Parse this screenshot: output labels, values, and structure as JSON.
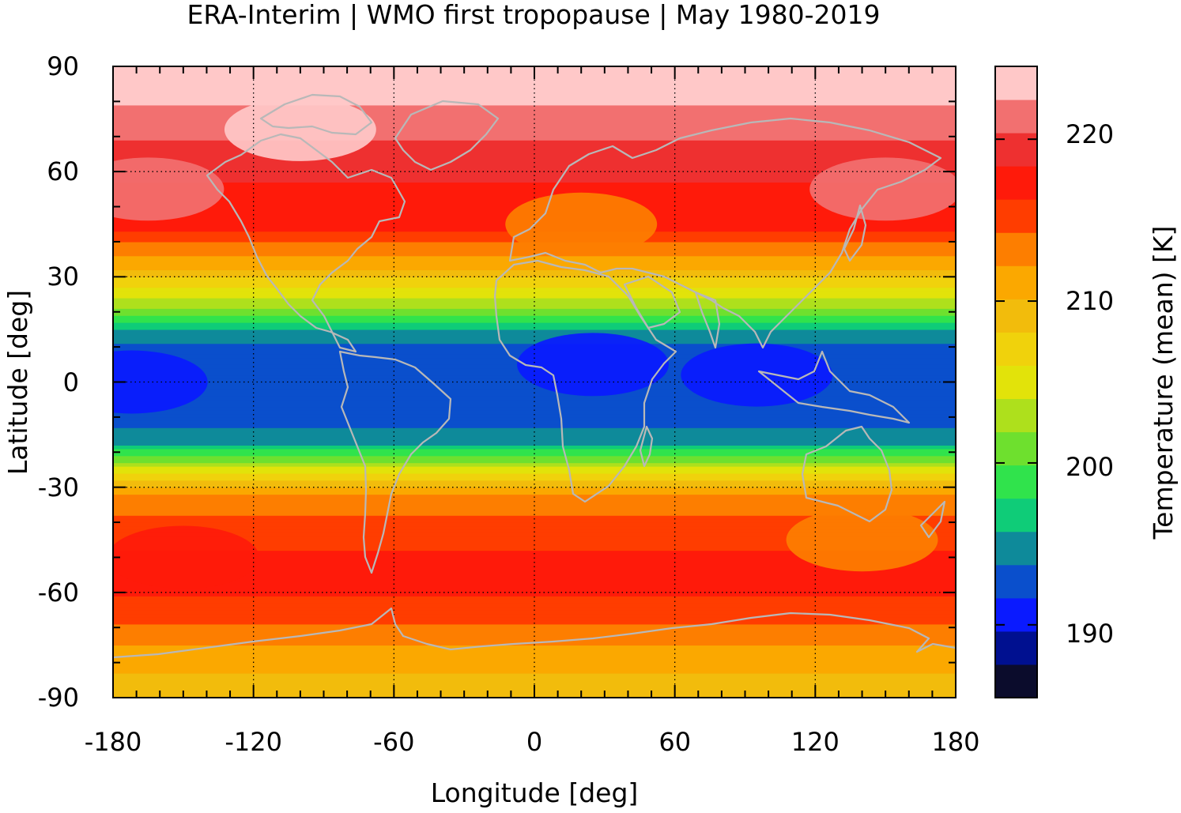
{
  "chart_data": {
    "type": "heatmap",
    "title": "ERA-Interim | WMO first tropopause | May 1980-2019",
    "xlabel": "Longitude [deg]",
    "ylabel": "Latitude [deg]",
    "xlim": [
      -180,
      180
    ],
    "ylim": [
      -90,
      90
    ],
    "x_ticks": [
      -180,
      -120,
      -60,
      0,
      60,
      120,
      180
    ],
    "x_tick_labels": [
      "-180",
      "-120",
      "-60",
      "0",
      "60",
      "120",
      "180"
    ],
    "y_ticks": [
      90,
      60,
      30,
      0,
      -30,
      -60,
      -90
    ],
    "y_tick_labels": [
      "90",
      "60",
      "30",
      "0",
      "-30",
      "-60",
      "-90"
    ],
    "grid": true,
    "coastlines_color": "#b8b8b8",
    "colorbar": {
      "label": "Temperature (mean) [K]",
      "range": [
        185.5,
        224.5
      ],
      "ticks": [
        190,
        200,
        210,
        220
      ],
      "tick_labels": [
        "190",
        "200",
        "210",
        "220"
      ],
      "colors": [
        "#0b0c2c",
        "#001090",
        "#0a1aff",
        "#0a4fcc",
        "#0e8a9a",
        "#0fcc78",
        "#30e34c",
        "#6ee02e",
        "#aee01c",
        "#e2e30a",
        "#f0d20c",
        "#f2bc0c",
        "#fba800",
        "#fd7e00",
        "#ff3d00",
        "#ff1a0a",
        "#ee3030",
        "#f27070",
        "#ffc8c8"
      ]
    },
    "zonal_profile": [
      {
        "lat": -90,
        "value": 209.5
      },
      {
        "lat": -83,
        "value": 210
      },
      {
        "lat": -76,
        "value": 212
      },
      {
        "lat": -70,
        "value": 214
      },
      {
        "lat": -64,
        "value": 216
      },
      {
        "lat": -55,
        "value": 217
      },
      {
        "lat": -45,
        "value": 216
      },
      {
        "lat": -37,
        "value": 214
      },
      {
        "lat": -32,
        "value": 212
      },
      {
        "lat": -29,
        "value": 209.5
      },
      {
        "lat": -26,
        "value": 206
      },
      {
        "lat": -22,
        "value": 201
      },
      {
        "lat": -18,
        "value": 196
      },
      {
        "lat": -12,
        "value": 193
      },
      {
        "lat": 0,
        "value": 192
      },
      {
        "lat": 10,
        "value": 193
      },
      {
        "lat": 15,
        "value": 196
      },
      {
        "lat": 19,
        "value": 200
      },
      {
        "lat": 24,
        "value": 204
      },
      {
        "lat": 28,
        "value": 207
      },
      {
        "lat": 33,
        "value": 210.5
      },
      {
        "lat": 38,
        "value": 213
      },
      {
        "lat": 42,
        "value": 216
      },
      {
        "lat": 47,
        "value": 217
      },
      {
        "lat": 55,
        "value": 218
      },
      {
        "lat": 62,
        "value": 219
      },
      {
        "lat": 68,
        "value": 220
      },
      {
        "lat": 75,
        "value": 222
      },
      {
        "lat": 83,
        "value": 223
      },
      {
        "lat": 90,
        "value": 223.5
      }
    ],
    "anomalies": [
      {
        "lon": 95,
        "lat": 2,
        "value": 190.5,
        "description": "cold tropopause over Indonesian maritime continent"
      },
      {
        "lon": 25,
        "lat": 5,
        "value": 191,
        "description": "cold tropopause over central Africa"
      },
      {
        "lon": -172,
        "lat": 0,
        "value": 191,
        "description": "cold tropopause over central Pacific"
      },
      {
        "lon": -100,
        "lat": 72,
        "value": 223,
        "description": "warm tropopause over Canadian Arctic"
      },
      {
        "lon": -165,
        "lat": 55,
        "value": 221,
        "description": "warm tropopause over North Pacific"
      },
      {
        "lon": 150,
        "lat": 55,
        "value": 221,
        "description": "warm tropopause over Northeast Asia"
      },
      {
        "lon": 20,
        "lat": 45,
        "value": 213,
        "description": "cooler tropopause over Mediterranean"
      },
      {
        "lon": -150,
        "lat": -50,
        "value": 218,
        "description": "warm tropopause over South Pacific"
      },
      {
        "lon": 140,
        "lat": -45,
        "value": 213,
        "description": "cooler tropopause south of Australia"
      }
    ]
  }
}
